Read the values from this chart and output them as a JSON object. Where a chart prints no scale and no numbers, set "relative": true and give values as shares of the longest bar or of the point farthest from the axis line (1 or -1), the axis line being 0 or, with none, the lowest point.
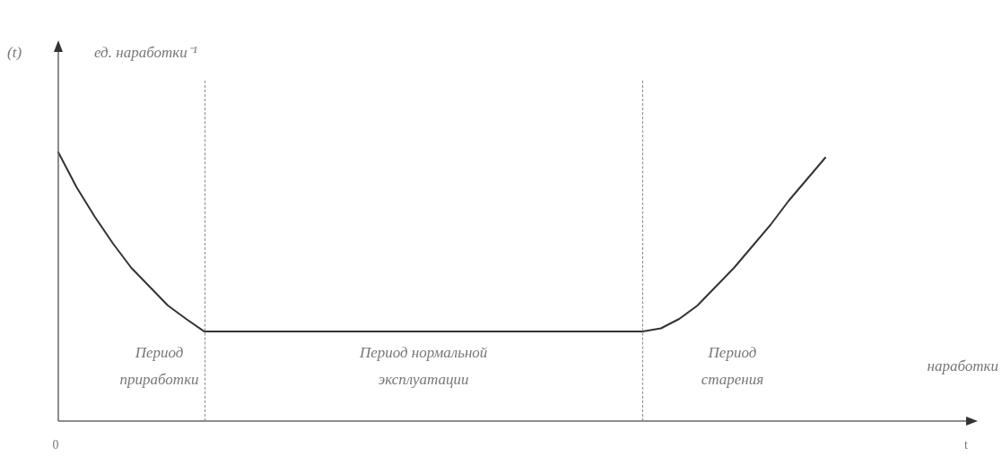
{
  "chart_data": {
    "type": "line",
    "relative": true,
    "categories": [
      null,
      null,
      null,
      null,
      null,
      null,
      null,
      null,
      null,
      null,
      null,
      null,
      null,
      null,
      null,
      null,
      null,
      null,
      null,
      null,
      null,
      null,
      null,
      null,
      null,
      null,
      null,
      null,
      null,
      null,
      null,
      null,
      null,
      null,
      null,
      null,
      null,
      null,
      null,
      null,
      null,
      null,
      null
    ],
    "series": [
      {
        "color": "#333333",
        "values": [
          1,
          0.87,
          0.76,
          0.66,
          0.57,
          0.5,
          0.43,
          0.38,
          0.333,
          0.333,
          0.333,
          0.333,
          0.333,
          0.333,
          0.333,
          0.333,
          0.333,
          0.333,
          0.333,
          0.333,
          0.333,
          0.333,
          0.333,
          0.333,
          0.333,
          0.333,
          0.333,
          0.333,
          0.333,
          0.333,
          0.333,
          0.333,
          0.333,
          0.345,
          0.38,
          0.43,
          0.5,
          0.57,
          0.65,
          0.73,
          0.82,
          0.9,
          0.98
        ]
      }
    ],
    "annotations": [
      "(t)",
      "ед. наработки⁻¹",
      "Период\nприработки",
      "Период нормальной\nэксплуатации",
      "Период\nстарения",
      "наработки",
      "0",
      "t"
    ],
    "marker": "none",
    "line_style": "solid"
  }
}
